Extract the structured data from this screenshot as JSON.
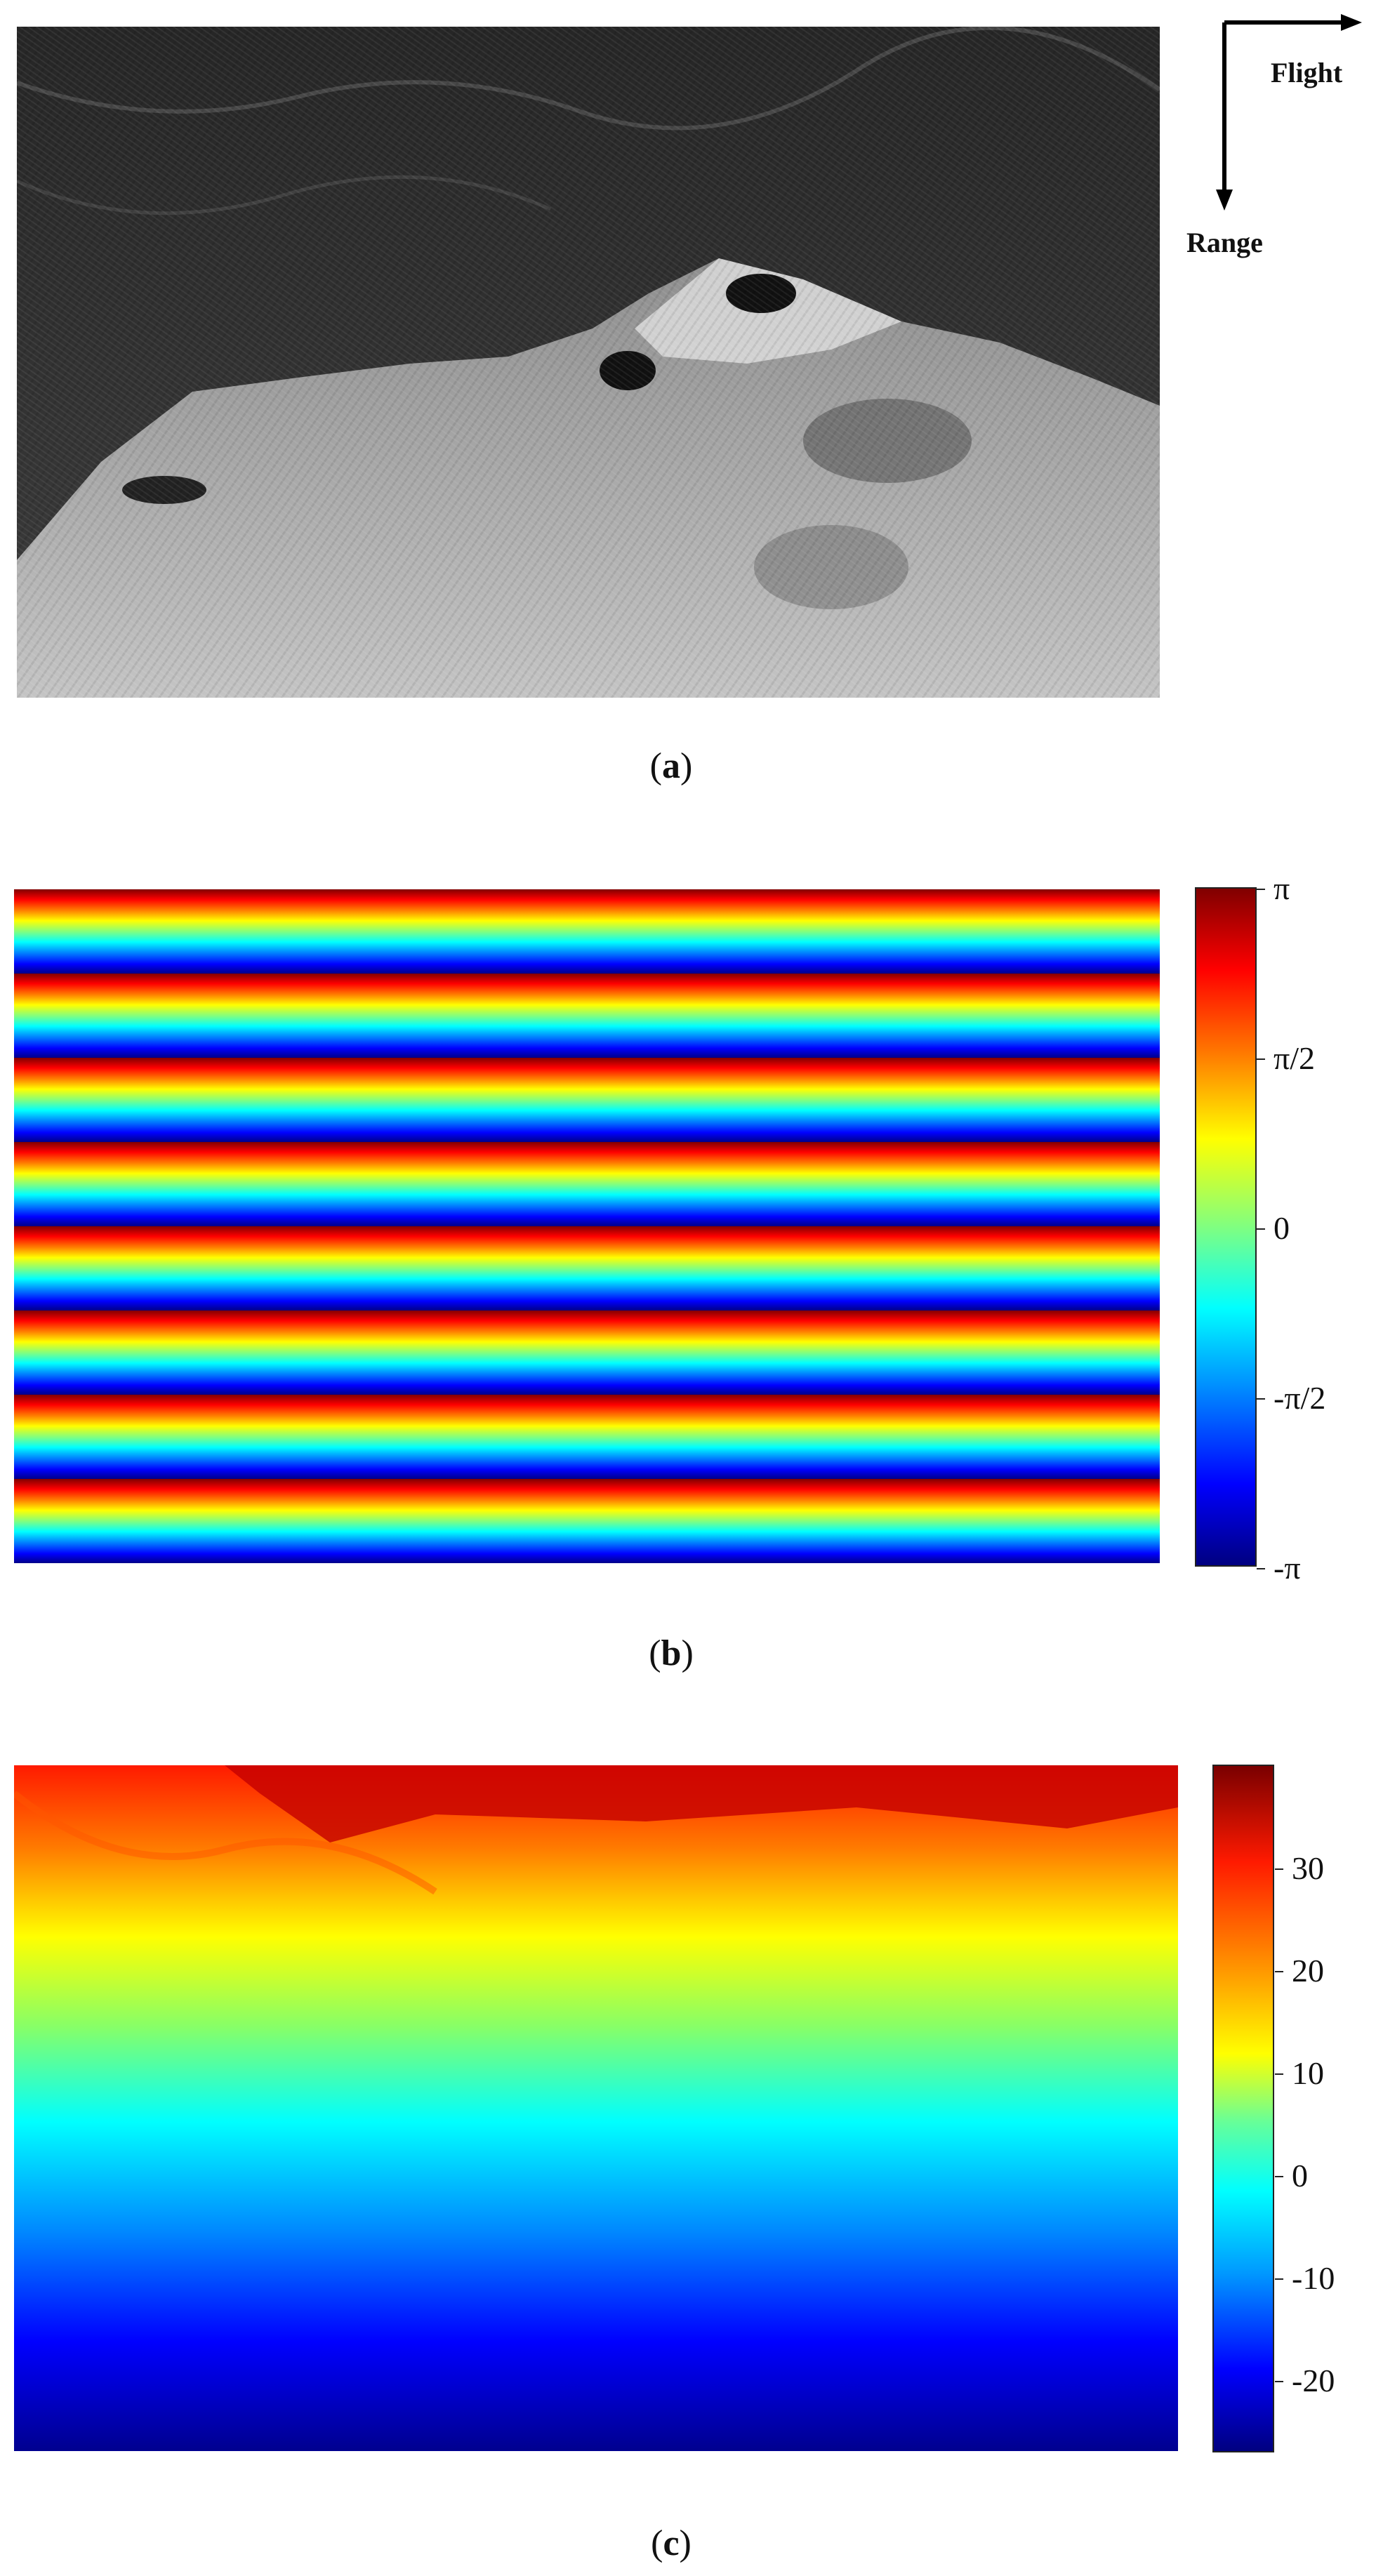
{
  "panels": [
    {
      "id": "a",
      "caption_open": "(",
      "caption_letter": "a",
      "caption_close": ")",
      "image_kind": "grayscale SAR amplitude image",
      "direction_labels": {
        "flight": "Flight",
        "range": "Range"
      }
    },
    {
      "id": "b",
      "caption_open": "(",
      "caption_letter": "b",
      "caption_close": ")",
      "image_kind": "wrapped interferometric phase fringes",
      "colormap": "jet",
      "colorbar_ticks": [
        "π",
        "π/2",
        "0",
        "-π/2",
        "-π"
      ],
      "fringe_count": 8
    },
    {
      "id": "c",
      "caption_open": "(",
      "caption_letter": "c",
      "caption_close": ")",
      "image_kind": "unwrapped phase",
      "colormap": "jet",
      "colorbar_ticks": [
        "30",
        "20",
        "10",
        "0",
        "-10",
        "-20"
      ],
      "colorbar_range": [
        -27,
        40
      ]
    }
  ],
  "colors": {
    "sar_land": "#3a3a3a",
    "sar_water": "#b8b8b8",
    "jet_dark_red": "#800000",
    "jet_dark_blue": "#000080"
  },
  "icons": [
    "flight-direction-arrow-icon",
    "range-direction-arrow-icon"
  ]
}
